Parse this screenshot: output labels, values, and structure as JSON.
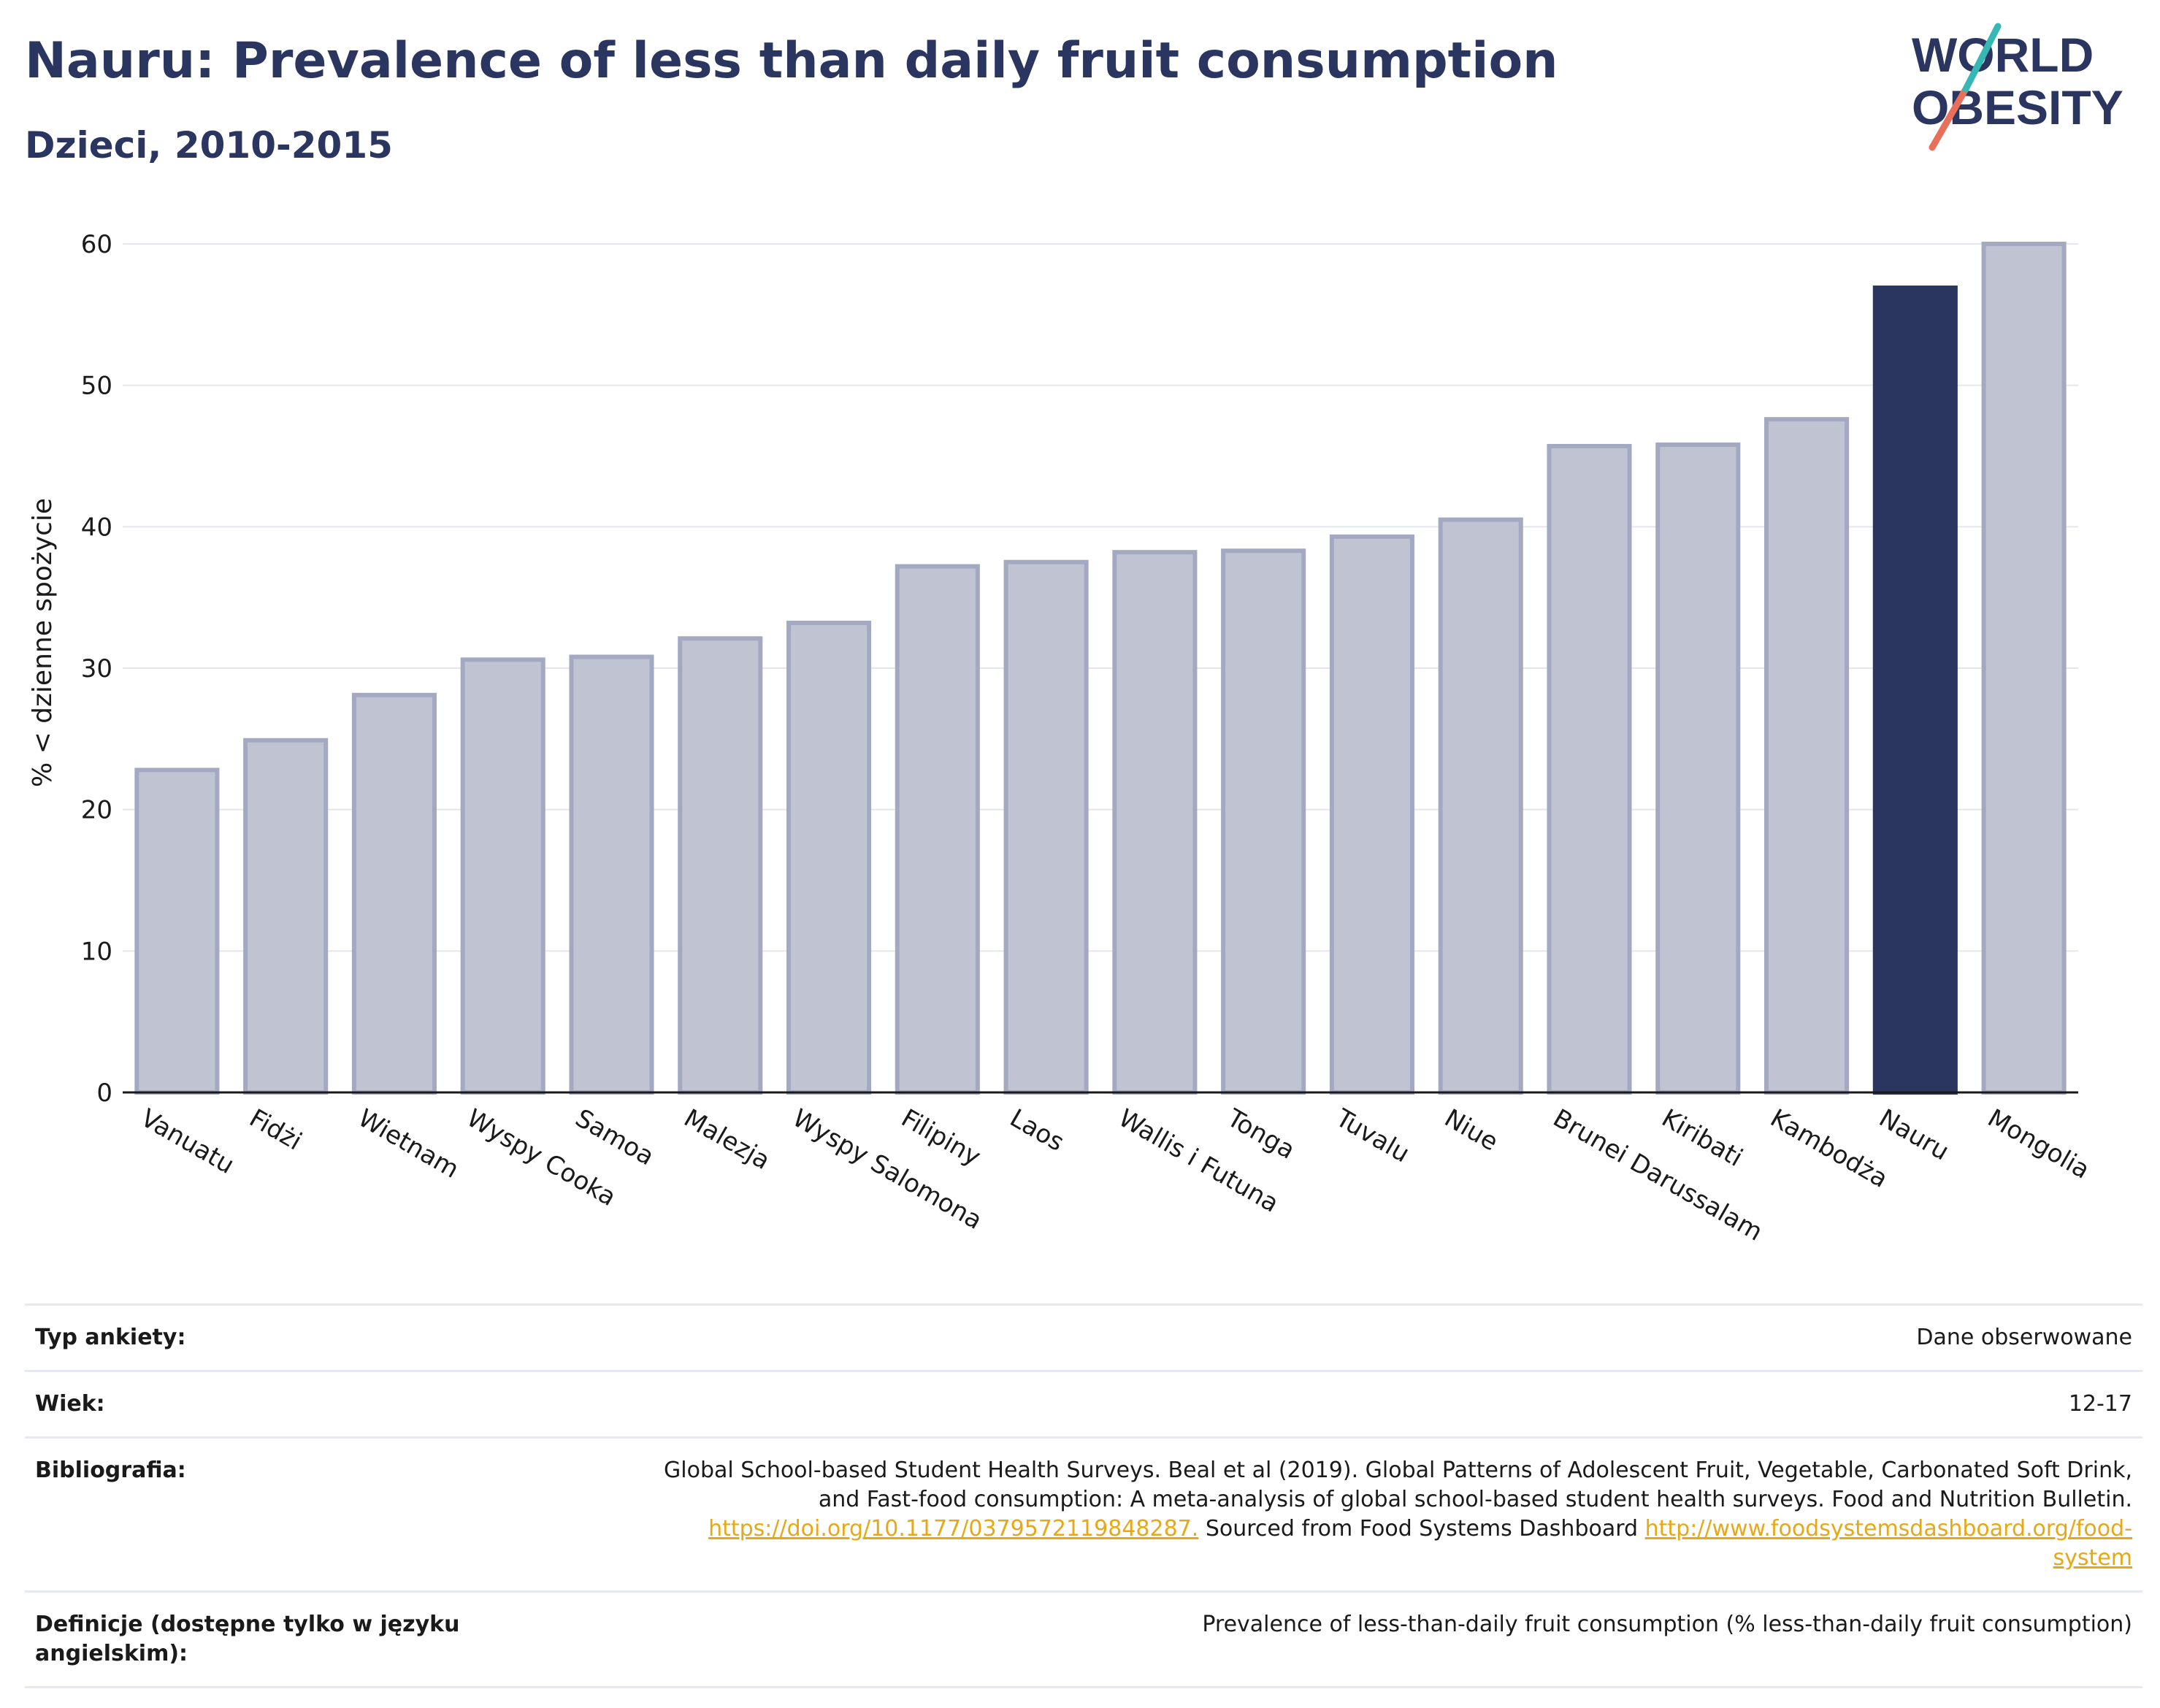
{
  "header": {
    "title": "Nauru: Prevalence of less than daily fruit consumption",
    "subtitle": "Dzieci, 2010-2015",
    "logo_line1": "WORLD",
    "logo_line2": "OBESITY"
  },
  "chart_data": {
    "type": "bar",
    "ylabel": "% < dzienne spożycie",
    "ylim": [
      0,
      60
    ],
    "yticks": [
      0,
      10,
      20,
      30,
      40,
      50,
      60
    ],
    "grid": true,
    "categories": [
      "Vanuatu",
      "Fidżi",
      "Wietnam",
      "Wyspy Cooka",
      "Samoa",
      "Malezja",
      "Wyspy Salomona",
      "Filipiny",
      "Laos",
      "Wallis i Futuna",
      "Tonga",
      "Tuvalu",
      "Niue",
      "Brunei Darussalam",
      "Kiribati",
      "Kambodża",
      "Nauru",
      "Mongolia"
    ],
    "values": [
      22.8,
      24.9,
      28.1,
      30.6,
      30.8,
      32.1,
      33.2,
      37.2,
      37.5,
      38.2,
      38.3,
      39.3,
      40.5,
      45.7,
      45.8,
      47.6,
      56.9,
      60.0
    ],
    "highlight": "Nauru",
    "colors": {
      "default_fill": "#bfc3d2",
      "default_stroke": "#a4a9c2",
      "highlight_fill": "#2a3560"
    }
  },
  "info": {
    "survey_label": "Typ ankiety:",
    "survey_value": "Dane obserwowane",
    "age_label": "Wiek:",
    "age_value": "12-17",
    "biblio_label": "Bibliografia:",
    "biblio_text1": "Global School-based Student Health Surveys. Beal et al (2019). Global Patterns of Adolescent Fruit, Vegetable, Carbonated Soft Drink,",
    "biblio_text2": "and Fast-food consumption: A meta-analysis of global school-based student health surveys. Food and Nutrition Bulletin.",
    "biblio_link1": "https://doi.org/10.1177/0379572119848287.",
    "biblio_text3": " Sourced from Food Systems Dashboard ",
    "biblio_link2a": "http://www.foodsystemsdashboard.org/food-",
    "biblio_link2b": "system",
    "def_label": "Definicje (dostępne tylko w języku angielskim):",
    "def_value": "Prevalence of less-than-daily fruit consumption (% less-than-daily fruit consumption)"
  }
}
